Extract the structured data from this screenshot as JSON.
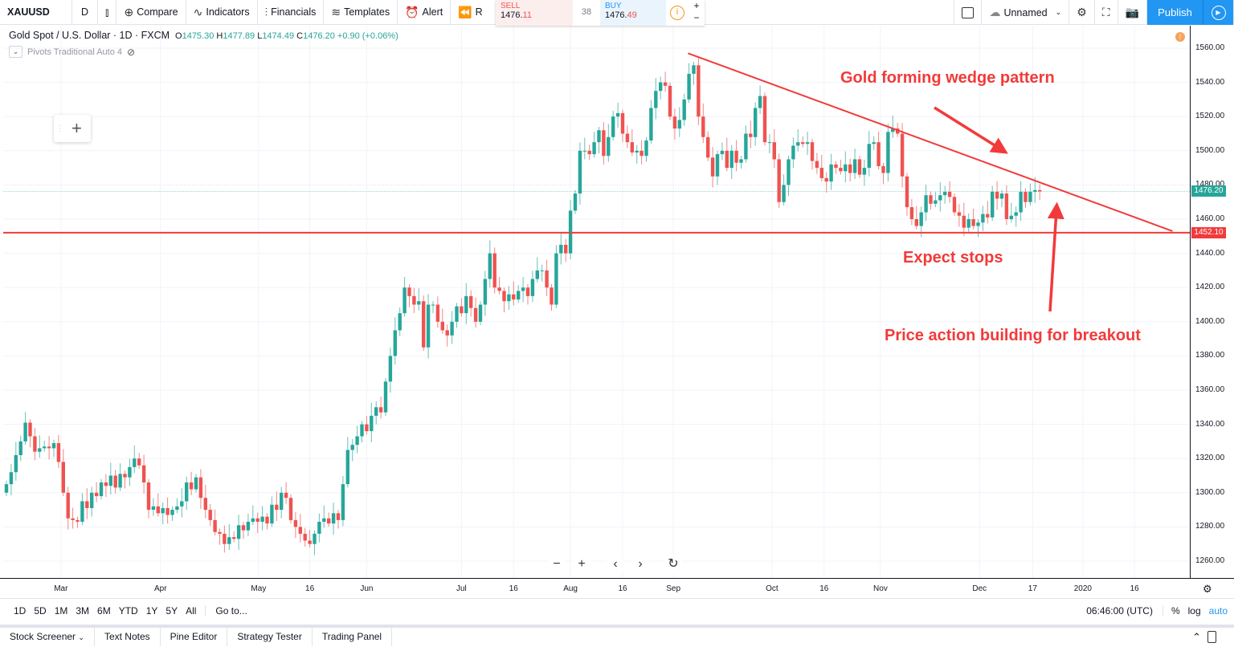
{
  "toolbar": {
    "symbol": "XAUUSD",
    "interval": "D",
    "compare": "Compare",
    "indicators": "Indicators",
    "financials": "Financials",
    "templates": "Templates",
    "alert": "Alert",
    "replay": "R",
    "layout_name": "Unnamed",
    "publish": "Publish"
  },
  "trade": {
    "sell_label": "SELL",
    "sell_int": "1476.",
    "sell_dec": "11",
    "spread": "38",
    "buy_label": "BUY",
    "buy_int": "1476.",
    "buy_dec": "49",
    "info": "i"
  },
  "legend": {
    "title": "Gold Spot / U.S. Dollar · 1D · FXCM",
    "o_label": "O",
    "o": "1475.30",
    "h_label": "H",
    "h": "1477.89",
    "l_label": "L",
    "l": "1474.49",
    "c_label": "C",
    "c": "1476.20",
    "change": "+0.90 (+0.06%)",
    "indicator": "Pivots Traditional Auto 4"
  },
  "annotations": {
    "wedge": "Gold forming wedge pattern",
    "stops": "Expect stops",
    "breakout": "Price action building for breakout"
  },
  "range_bar": {
    "ranges": [
      "1D",
      "5D",
      "1M",
      "3M",
      "6M",
      "YTD",
      "1Y",
      "5Y",
      "All"
    ],
    "goto": "Go to...",
    "clock": "06:46:00 (UTC)",
    "percent": "%",
    "log": "log",
    "auto": "auto"
  },
  "bottom_tabs": [
    "Stock Screener",
    "Text Notes",
    "Pine Editor",
    "Strategy Tester",
    "Trading Panel"
  ],
  "colors": {
    "up": "#26a69a",
    "down": "#ef5350",
    "annotation": "#f23a3a",
    "accent": "#2196f3"
  },
  "chart_data": {
    "type": "candlestick",
    "title": "Gold Spot / U.S. Dollar · 1D · FXCM",
    "ylim": [
      1250,
      1565
    ],
    "y_ticks": [
      "1260.00",
      "1280.00",
      "1300.00",
      "1320.00",
      "1340.00",
      "1360.00",
      "1380.00",
      "1400.00",
      "1420.00",
      "1440.00",
      "1460.00",
      "1480.00",
      "1500.00",
      "1520.00",
      "1540.00",
      "1560.00"
    ],
    "x_ticks": [
      {
        "label": "Mar",
        "bar": 11.5
      },
      {
        "label": "Apr",
        "bar": 32.5
      },
      {
        "label": "May",
        "bar": 53.2
      },
      {
        "label": "16",
        "bar": 64
      },
      {
        "label": "Jun",
        "bar": 76
      },
      {
        "label": "Jul",
        "bar": 96
      },
      {
        "label": "16",
        "bar": 107
      },
      {
        "label": "Aug",
        "bar": 119
      },
      {
        "label": "16",
        "bar": 130
      },
      {
        "label": "Sep",
        "bar": 140.7
      },
      {
        "label": "Oct",
        "bar": 161.5
      },
      {
        "label": "16",
        "bar": 172.5
      },
      {
        "label": "Nov",
        "bar": 184.4
      },
      {
        "label": "Dec",
        "bar": 205.3
      },
      {
        "label": "17",
        "bar": 216.5
      },
      {
        "label": "2020",
        "bar": 227.1
      },
      {
        "label": "16",
        "bar": 238
      }
    ],
    "closes": [
      1305,
      1312,
      1322,
      1330,
      1341,
      1333,
      1324,
      1326,
      1327,
      1326,
      1329,
      1318,
      1300,
      1285,
      1284,
      1283,
      1295,
      1291,
      1300,
      1298,
      1306,
      1304,
      1310,
      1303,
      1311,
      1309,
      1315,
      1320,
      1316,
      1306,
      1290,
      1292,
      1288,
      1291,
      1287,
      1290,
      1292,
      1295,
      1306,
      1302,
      1309,
      1297,
      1290,
      1284,
      1277,
      1276,
      1270,
      1274,
      1273,
      1281,
      1278,
      1283,
      1285,
      1283,
      1286,
      1282,
      1293,
      1290,
      1300,
      1297,
      1284,
      1280,
      1276,
      1272,
      1270,
      1276,
      1283,
      1285,
      1282,
      1288,
      1284,
      1305,
      1325,
      1328,
      1333,
      1340,
      1336,
      1345,
      1350,
      1347,
      1365,
      1380,
      1395,
      1405,
      1420,
      1415,
      1410,
      1412,
      1385,
      1410,
      1410,
      1400,
      1395,
      1392,
      1400,
      1409,
      1405,
      1415,
      1408,
      1400,
      1410,
      1425,
      1440,
      1420,
      1418,
      1412,
      1416,
      1413,
      1418,
      1420,
      1415,
      1425,
      1430,
      1430,
      1420,
      1410,
      1440,
      1445,
      1440,
      1465,
      1475,
      1500,
      1500,
      1498,
      1505,
      1512,
      1497,
      1508,
      1520,
      1522,
      1510,
      1505,
      1499,
      1500,
      1497,
      1506,
      1525,
      1535,
      1540,
      1538,
      1520,
      1513,
      1518,
      1530,
      1545,
      1550,
      1520,
      1508,
      1496,
      1485,
      1498,
      1500,
      1490,
      1500,
      1493,
      1495,
      1510,
      1508,
      1525,
      1532,
      1505,
      1505,
      1495,
      1470,
      1480,
      1495,
      1503,
      1505,
      1504,
      1505,
      1494,
      1490,
      1484,
      1482,
      1492,
      1490,
      1488,
      1492,
      1487,
      1495,
      1486,
      1490,
      1504,
      1505,
      1491,
      1487,
      1511,
      1513,
      1510,
      1485,
      1467,
      1460,
      1456,
      1464,
      1474,
      1469,
      1471,
      1474,
      1476,
      1473,
      1464,
      1462,
      1455,
      1460,
      1456,
      1458,
      1463,
      1461,
      1476,
      1472,
      1475,
      1460,
      1462,
      1464,
      1476,
      1470,
      1476,
      1477,
      1476.2
    ],
    "first_close_open": 1300,
    "last_price": "1476.20",
    "support_line": {
      "price": 1452.1,
      "label": "1452.10"
    },
    "trendline": {
      "from": {
        "bar": 143.8,
        "price": 1557
      },
      "to": {
        "bar": 246,
        "price": 1453
      }
    }
  }
}
